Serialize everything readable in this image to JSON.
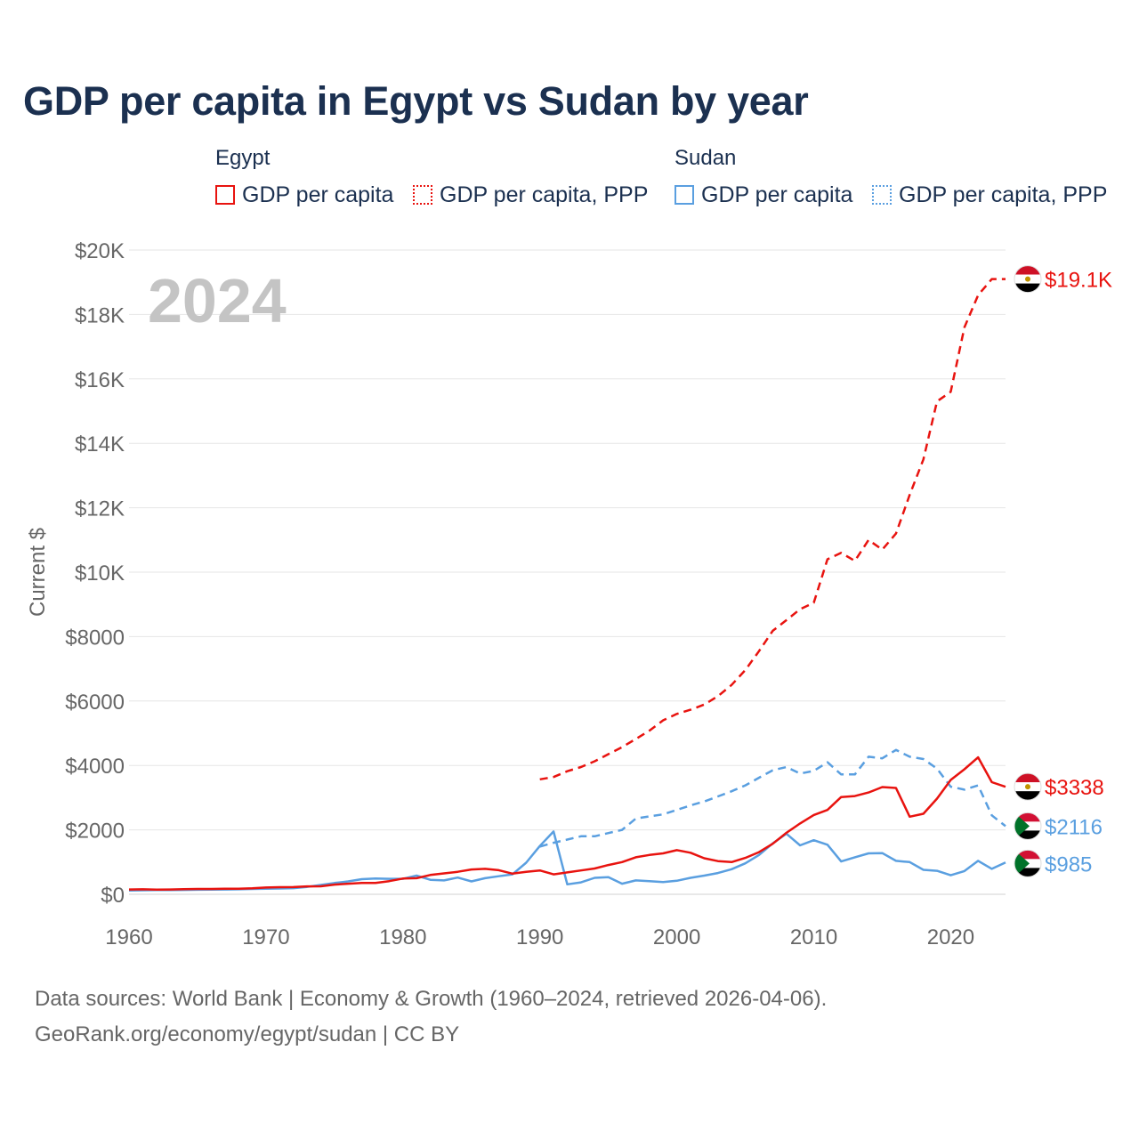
{
  "title": "GDP per capita in Egypt vs Sudan by year",
  "legend": {
    "groups": [
      {
        "country": "Egypt",
        "items": [
          "GDP per capita",
          "GDP per capita, PPP"
        ],
        "color": "#e8130f"
      },
      {
        "country": "Sudan",
        "items": [
          "GDP per capita",
          "GDP per capita, PPP"
        ],
        "color": "#5a9fe0"
      }
    ]
  },
  "year_label": "2024",
  "footer": {
    "line1": "Data sources: World Bank | Economy & Growth (1960–2024, retrieved 2026-04-06).",
    "line2": "GeoRank.org/economy/egypt/sudan | CC BY"
  },
  "chart_data": {
    "type": "line",
    "title": "GDP per capita in Egypt vs Sudan by year",
    "xlabel": "",
    "ylabel": "Current $",
    "xlim": [
      1960,
      2024
    ],
    "ylim": [
      0,
      20000
    ],
    "grid": true,
    "x_ticks": [
      1960,
      1970,
      1980,
      1990,
      2000,
      2010,
      2020
    ],
    "x_tick_labels": [
      "1960",
      "1970",
      "1980",
      "1990",
      "2000",
      "2010",
      "2020"
    ],
    "y_ticks": [
      0,
      2000,
      4000,
      6000,
      8000,
      10000,
      12000,
      14000,
      16000,
      18000,
      20000
    ],
    "y_tick_labels": [
      "$0",
      "$2000",
      "$4000",
      "$6000",
      "$8000",
      "$10K",
      "$12K",
      "$14K",
      "$16K",
      "$18K",
      "$20K"
    ],
    "series": [
      {
        "name": "Egypt GDP per capita",
        "country": "Egypt",
        "metric": "GDP per capita",
        "color": "#e8130f",
        "dash": "solid",
        "end_label": "$3338",
        "x": [
          1960,
          1961,
          1962,
          1963,
          1964,
          1965,
          1966,
          1967,
          1968,
          1969,
          1970,
          1971,
          1972,
          1973,
          1974,
          1975,
          1976,
          1977,
          1978,
          1979,
          1980,
          1981,
          1982,
          1983,
          1984,
          1985,
          1986,
          1987,
          1988,
          1989,
          1990,
          1991,
          1992,
          1993,
          1994,
          1995,
          1996,
          1997,
          1998,
          1999,
          2000,
          2001,
          2002,
          2003,
          2004,
          2005,
          2006,
          2007,
          2008,
          2009,
          2010,
          2011,
          2012,
          2013,
          2014,
          2015,
          2016,
          2017,
          2018,
          2019,
          2020,
          2021,
          2022,
          2023,
          2024
        ],
        "values": [
          150,
          155,
          145,
          150,
          160,
          165,
          165,
          170,
          175,
          185,
          210,
          220,
          225,
          245,
          250,
          300,
          330,
          350,
          350,
          410,
          490,
          500,
          600,
          650,
          700,
          770,
          790,
          750,
          640,
          700,
          740,
          620,
          680,
          740,
          800,
          910,
          1000,
          1150,
          1220,
          1270,
          1370,
          1290,
          1120,
          1030,
          1000,
          1130,
          1310,
          1570,
          1910,
          2200,
          2460,
          2620,
          3020,
          3050,
          3160,
          3330,
          3300,
          2410,
          2500,
          2970,
          3550,
          3880,
          4250,
          3480,
          3338
        ]
      },
      {
        "name": "Egypt GDP per capita, PPP",
        "country": "Egypt",
        "metric": "GDP per capita, PPP",
        "color": "#e8130f",
        "dash": "dashed",
        "end_label": "$19.1K",
        "x": [
          1990,
          1991,
          1992,
          1993,
          1994,
          1995,
          1996,
          1997,
          1998,
          1999,
          2000,
          2001,
          2002,
          2003,
          2004,
          2005,
          2006,
          2007,
          2008,
          2009,
          2010,
          2011,
          2012,
          2013,
          2014,
          2015,
          2016,
          2017,
          2018,
          2019,
          2020,
          2021,
          2022,
          2023,
          2024
        ],
        "values": [
          3570,
          3640,
          3820,
          3950,
          4130,
          4350,
          4570,
          4820,
          5080,
          5400,
          5600,
          5730,
          5890,
          6150,
          6500,
          6960,
          7550,
          8180,
          8510,
          8850,
          9050,
          10400,
          10600,
          10350,
          11000,
          10700,
          11200,
          12400,
          13500,
          15300,
          15600,
          17600,
          18600,
          19100,
          19100
        ]
      },
      {
        "name": "Sudan GDP per capita",
        "country": "Sudan",
        "metric": "GDP per capita",
        "color": "#5a9fe0",
        "dash": "solid",
        "end_label": "$985",
        "x": [
          1960,
          1961,
          1962,
          1963,
          1964,
          1965,
          1966,
          1967,
          1968,
          1969,
          1970,
          1971,
          1972,
          1973,
          1974,
          1975,
          1976,
          1977,
          1978,
          1979,
          1980,
          1981,
          1982,
          1983,
          1984,
          1985,
          1986,
          1987,
          1988,
          1989,
          1990,
          1991,
          1992,
          1993,
          1994,
          1995,
          1996,
          1997,
          1998,
          1999,
          2000,
          2001,
          2002,
          2003,
          2004,
          2005,
          2006,
          2007,
          2008,
          2009,
          2010,
          2011,
          2012,
          2013,
          2014,
          2015,
          2016,
          2017,
          2018,
          2019,
          2020,
          2021,
          2022,
          2023,
          2024
        ],
        "values": [
          120,
          125,
          130,
          130,
          135,
          140,
          145,
          150,
          155,
          165,
          175,
          180,
          190,
          230,
          290,
          350,
          400,
          470,
          490,
          480,
          480,
          580,
          450,
          430,
          520,
          400,
          500,
          560,
          620,
          980,
          1500,
          1950,
          310,
          370,
          510,
          530,
          330,
          430,
          410,
          380,
          420,
          510,
          580,
          660,
          780,
          960,
          1220,
          1580,
          1880,
          1520,
          1680,
          1540,
          1020,
          1150,
          1270,
          1280,
          1040,
          1000,
          760,
          730,
          590,
          720,
          1040,
          790,
          985
        ]
      },
      {
        "name": "Sudan GDP per capita, PPP",
        "country": "Sudan",
        "metric": "GDP per capita, PPP",
        "color": "#5a9fe0",
        "dash": "dashed",
        "end_label": "$2116",
        "x": [
          1990,
          1991,
          1992,
          1993,
          1994,
          1995,
          1996,
          1997,
          1998,
          1999,
          2000,
          2001,
          2002,
          2003,
          2004,
          2005,
          2006,
          2007,
          2008,
          2009,
          2010,
          2011,
          2012,
          2013,
          2014,
          2015,
          2016,
          2017,
          2018,
          2019,
          2020,
          2021,
          2022,
          2023,
          2024
        ],
        "values": [
          1480,
          1600,
          1700,
          1800,
          1800,
          1900,
          2000,
          2350,
          2420,
          2480,
          2620,
          2760,
          2880,
          3040,
          3200,
          3380,
          3620,
          3850,
          3950,
          3750,
          3830,
          4100,
          3720,
          3720,
          4270,
          4220,
          4480,
          4270,
          4200,
          3900,
          3340,
          3250,
          3380,
          2450,
          2116
        ]
      }
    ]
  }
}
